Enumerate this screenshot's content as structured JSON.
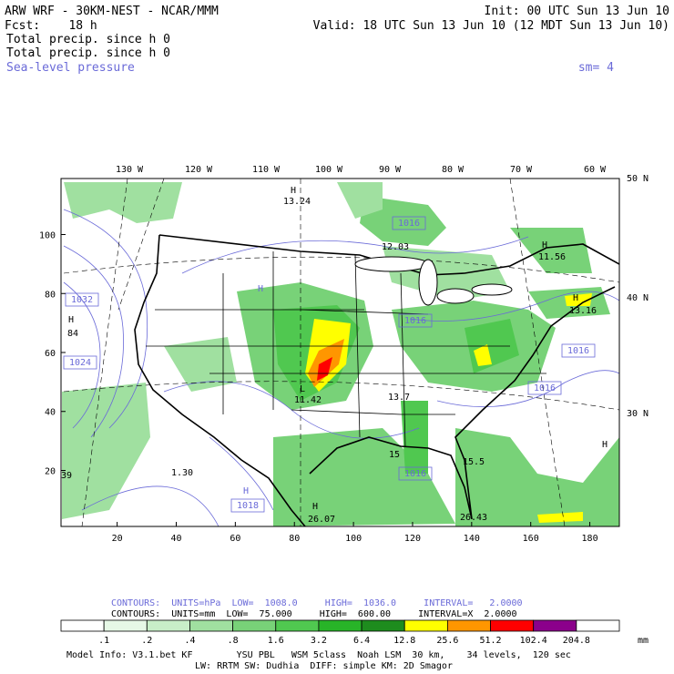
{
  "header": {
    "left": [
      "ARW WRF - 30KM-NEST - NCAR/MMM",
      "Fcst:    18 h",
      "Total precip. since h 0",
      "Total precip. since h 0",
      "Sea-level pressure"
    ],
    "right": [
      "Init: 00 UTC Sun 13 Jun 10",
      "Valid: 18 UTC Sun 13 Jun 10 (12 MDT Sun 13 Jun 10)"
    ],
    "sm": "sm= 4"
  },
  "map": {
    "lon_labels": [
      "130 W",
      "120 W",
      "110 W",
      "100 W",
      "90 W",
      "80 W",
      "70 W",
      "60 W"
    ],
    "lat_labels": [
      "50 N",
      "40 N",
      "30 N"
    ],
    "xlim": [
      1,
      190
    ],
    "xticks": [
      20,
      40,
      60,
      80,
      100,
      120,
      140,
      160,
      180
    ],
    "ylim": [
      1,
      119
    ],
    "yticks": [
      20,
      40,
      60,
      80,
      100
    ],
    "labels": [
      "H",
      "13.24",
      "1016",
      "12.03",
      "H",
      "11.56",
      "H",
      "1032",
      "H",
      "84",
      "1024",
      "1016",
      "H",
      "13.16",
      "1016",
      "1016",
      "L",
      "11.42",
      "13.7",
      "15",
      "1016",
      "15.5",
      "1.30",
      "39",
      "H",
      "1018",
      "H",
      "26.07",
      "26.43",
      "H"
    ]
  },
  "footer": {
    "contours": [
      "CONTOURS:  UNITS=hPa  LOW=  1008.0     HIGH=  1036.0     INTERVAL=   2.0000",
      "CONTOURS:  UNITS=mm  LOW=  75.000     HIGH=  600.00     INTERVAL=X  2.0000"
    ],
    "colorbar": {
      "labels": [
        ".1",
        ".2",
        ".4",
        ".8",
        "1.6",
        "3.2",
        "6.4",
        "12.8",
        "25.6",
        "51.2",
        "102.4",
        "204.8"
      ],
      "unit": "mm",
      "colors": [
        "#ffffff",
        "#e6f8e6",
        "#c8eec8",
        "#a0e0a0",
        "#78d278",
        "#50c850",
        "#28b428",
        "#1e8c1e",
        "#ffff00",
        "#ff9600",
        "#ff0000",
        "#8b008b",
        "#ffffff"
      ]
    },
    "model_info": [
      "Model Info: V3.1.bet KF        YSU PBL   WSM 5class  Noah LSM  30 km,    34 levels,  120 sec",
      "LW: RRTM SW: Dudhia  DIFF: simple KM: 2D Smagor"
    ]
  }
}
